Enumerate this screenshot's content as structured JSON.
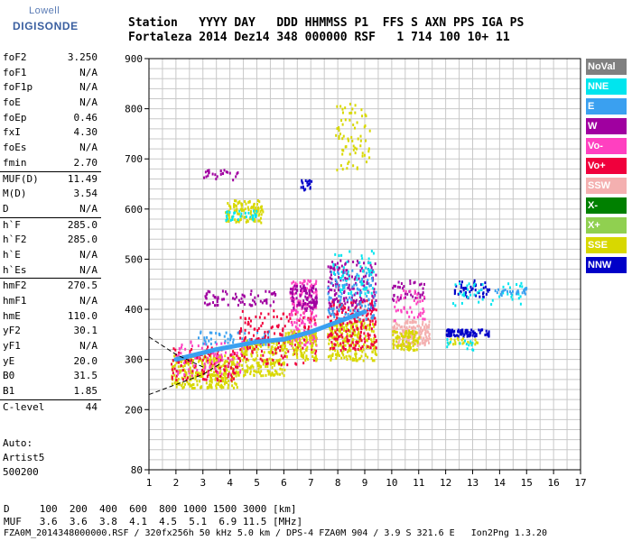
{
  "logo": {
    "line1": "Lowell",
    "line2": "DIGISONDE"
  },
  "header": {
    "line1": "Station   YYYY DAY   DDD HHMMSS P1  FFS S AXN PPS IGA PS",
    "line2": "Fortaleza 2014 Dez14 348 000000 RSF   1 714 100 10+ 11"
  },
  "params": [
    {
      "name": "foF2",
      "value": "3.250",
      "sep": false
    },
    {
      "name": "foF1",
      "value": "N/A",
      "sep": false
    },
    {
      "name": "foF1p",
      "value": "N/A",
      "sep": false
    },
    {
      "name": "foE",
      "value": "N/A",
      "sep": false
    },
    {
      "name": "foEp",
      "value": "0.46",
      "sep": false
    },
    {
      "name": "fxI",
      "value": "4.30",
      "sep": false
    },
    {
      "name": "foEs",
      "value": "N/A",
      "sep": false
    },
    {
      "name": "fmin",
      "value": "2.70",
      "sep": false
    },
    {
      "name": "MUF(D)",
      "value": "11.49",
      "sep": true
    },
    {
      "name": "M(D)",
      "value": "3.54",
      "sep": false
    },
    {
      "name": "D",
      "value": "N/A",
      "sep": false
    },
    {
      "name": "h`F",
      "value": "285.0",
      "sep": true
    },
    {
      "name": "h`F2",
      "value": "285.0",
      "sep": false
    },
    {
      "name": "h`E",
      "value": "N/A",
      "sep": false
    },
    {
      "name": "h`Es",
      "value": "N/A",
      "sep": false
    },
    {
      "name": "hmF2",
      "value": "270.5",
      "sep": true
    },
    {
      "name": "hmF1",
      "value": "N/A",
      "sep": false
    },
    {
      "name": "hmE",
      "value": "110.0",
      "sep": false
    },
    {
      "name": "yF2",
      "value": "30.1",
      "sep": false
    },
    {
      "name": "yF1",
      "value": "N/A",
      "sep": false
    },
    {
      "name": "yE",
      "value": "20.0",
      "sep": false
    },
    {
      "name": "B0",
      "value": "31.5",
      "sep": false
    },
    {
      "name": "B1",
      "value": "1.85",
      "sep": false
    },
    {
      "name": "C-level",
      "value": "44",
      "sep": true
    }
  ],
  "auto": {
    "line1": "Auto:",
    "line2": "Artist5",
    "line3": "500200"
  },
  "footer": {
    "d_line": "D     100  200  400  600  800 1000 1500 3000 [km]",
    "muf_line": "MUF   3.6  3.6  3.8  4.1  4.5  5.1  6.9 11.5 [MHz]",
    "file_line": "FZA0M_2014348000000.RSF / 320fx256h 50 kHz 5.0 km / DPS-4 FZA0M 904 / 3.9 S 321.6 E   Ion2Png 1.3.20"
  },
  "legend": [
    {
      "label": "NoVal",
      "color": "#808080"
    },
    {
      "label": "NNE",
      "color": "#00e5ee"
    },
    {
      "label": "E",
      "color": "#3aa0f0"
    },
    {
      "label": "W",
      "color": "#a000a0"
    },
    {
      "label": "Vo-",
      "color": "#ff40c0"
    },
    {
      "label": "Vo+",
      "color": "#f0003c"
    },
    {
      "label": "SSW",
      "color": "#f4b0b0"
    },
    {
      "label": "X-",
      "color": "#008000"
    },
    {
      "label": "X+",
      "color": "#90d050"
    },
    {
      "label": "SSE",
      "color": "#d8d800"
    },
    {
      "label": "NNW",
      "color": "#0000c8"
    }
  ],
  "chart_data": {
    "type": "scatter",
    "x_ticks": [
      1,
      2,
      3,
      4,
      5,
      6,
      7,
      8,
      9,
      10,
      11,
      12,
      13,
      14,
      15,
      16,
      17
    ],
    "y_ticks": [
      80,
      200,
      300,
      400,
      500,
      600,
      700,
      800,
      900
    ],
    "xlim": [
      1,
      17
    ],
    "ylim": [
      80,
      900
    ],
    "grid": true,
    "legend_position": "right",
    "clusters": [
      {
        "color": "#d8d800",
        "f": [
          1.8,
          4.3
        ],
        "h": [
          245,
          310
        ],
        "n": 320
      },
      {
        "color": "#f0003c",
        "f": [
          1.8,
          4.3
        ],
        "h": [
          260,
          330
        ],
        "n": 110
      },
      {
        "color": "#ff40c0",
        "f": [
          2.0,
          4.5
        ],
        "h": [
          270,
          340
        ],
        "n": 80
      },
      {
        "color": "#3aa0f0",
        "f": [
          2.8,
          5.5
        ],
        "h": [
          330,
          360
        ],
        "n": 60
      },
      {
        "color": "#a000a0",
        "f": [
          3.0,
          5.8
        ],
        "h": [
          410,
          440
        ],
        "n": 70
      },
      {
        "color": "#d8d800",
        "f": [
          4.3,
          6.0
        ],
        "h": [
          270,
          340
        ],
        "n": 200
      },
      {
        "color": "#f0003c",
        "f": [
          4.3,
          7.2
        ],
        "h": [
          290,
          400
        ],
        "n": 160
      },
      {
        "color": "#ff40c0",
        "f": [
          6.2,
          7.2
        ],
        "h": [
          330,
          460
        ],
        "n": 170
      },
      {
        "color": "#a000a0",
        "f": [
          6.2,
          7.2
        ],
        "h": [
          400,
          450
        ],
        "n": 90
      },
      {
        "color": "#d8d800",
        "f": [
          6.0,
          7.2
        ],
        "h": [
          300,
          360
        ],
        "n": 120
      },
      {
        "color": "#d8d800",
        "f": [
          7.6,
          9.4
        ],
        "h": [
          300,
          380
        ],
        "n": 240
      },
      {
        "color": "#f0003c",
        "f": [
          7.6,
          9.4
        ],
        "h": [
          320,
          420
        ],
        "n": 200
      },
      {
        "color": "#a000a0",
        "f": [
          7.6,
          9.4
        ],
        "h": [
          400,
          500
        ],
        "n": 150
      },
      {
        "color": "#3aa0f0",
        "f": [
          7.6,
          9.4
        ],
        "h": [
          380,
          480
        ],
        "n": 110
      },
      {
        "color": "#00e5ee",
        "f": [
          7.8,
          9.3
        ],
        "h": [
          430,
          520
        ],
        "n": 60
      },
      {
        "color": "#d8d800",
        "f": [
          7.9,
          9.2
        ],
        "h": [
          680,
          820
        ],
        "n": 70
      },
      {
        "color": "#d8d800",
        "f": [
          3.8,
          5.2
        ],
        "h": [
          575,
          620
        ],
        "n": 110
      },
      {
        "color": "#00e5ee",
        "f": [
          3.8,
          5.0
        ],
        "h": [
          580,
          600
        ],
        "n": 30
      },
      {
        "color": "#a000a0",
        "f": [
          3.0,
          4.4
        ],
        "h": [
          660,
          680
        ],
        "n": 25
      },
      {
        "color": "#0000c8",
        "f": [
          6.6,
          7.0
        ],
        "h": [
          640,
          660
        ],
        "n": 18
      },
      {
        "color": "#f4b0b0",
        "f": [
          10.0,
          11.4
        ],
        "h": [
          330,
          380
        ],
        "n": 150
      },
      {
        "color": "#d8d800",
        "f": [
          10.0,
          11.0
        ],
        "h": [
          320,
          360
        ],
        "n": 90
      },
      {
        "color": "#a000a0",
        "f": [
          10.0,
          11.2
        ],
        "h": [
          420,
          460
        ],
        "n": 40
      },
      {
        "color": "#ff40c0",
        "f": [
          10.0,
          11.2
        ],
        "h": [
          380,
          440
        ],
        "n": 40
      },
      {
        "color": "#0000c8",
        "f": [
          12.0,
          13.6
        ],
        "h": [
          348,
          362
        ],
        "n": 90
      },
      {
        "color": "#0000c8",
        "f": [
          12.3,
          13.6
        ],
        "h": [
          425,
          460
        ],
        "n": 50
      },
      {
        "color": "#00e5ee",
        "f": [
          12.0,
          15.0
        ],
        "h": [
          410,
          455
        ],
        "n": 45
      },
      {
        "color": "#3aa0f0",
        "f": [
          13.6,
          15.0
        ],
        "h": [
          430,
          445
        ],
        "n": 25
      },
      {
        "color": "#d8d800",
        "f": [
          12.0,
          13.2
        ],
        "h": [
          332,
          345
        ],
        "n": 20
      },
      {
        "color": "#00e5ee",
        "f": [
          12.0,
          13.0
        ],
        "h": [
          320,
          345
        ],
        "n": 15
      }
    ],
    "trace_E": {
      "color": "#3aa0f0",
      "points": [
        [
          2.0,
          300
        ],
        [
          3.5,
          320
        ],
        [
          5.0,
          335
        ],
        [
          6.0,
          340
        ],
        [
          7.0,
          355
        ],
        [
          8.0,
          375
        ],
        [
          9.0,
          395
        ]
      ]
    },
    "model_lines": [
      {
        "points": [
          [
            1.0,
            345
          ],
          [
            2.0,
            310
          ],
          [
            3.0,
            285
          ]
        ]
      },
      {
        "points": [
          [
            1.0,
            230
          ],
          [
            2.0,
            250
          ],
          [
            3.0,
            270
          ],
          [
            3.6,
            290
          ]
        ]
      }
    ]
  }
}
